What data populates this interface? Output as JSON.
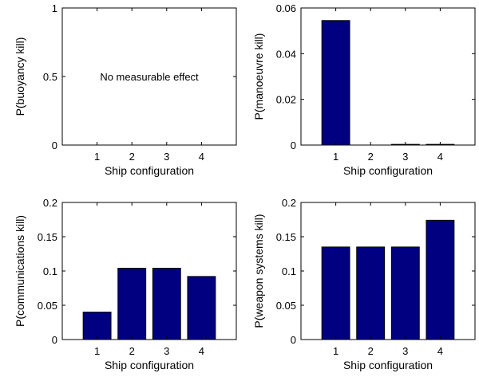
{
  "chart_data": [
    {
      "type": "bar",
      "categories": [
        "1",
        "2",
        "3",
        "4"
      ],
      "values": [
        0,
        0,
        0,
        0
      ],
      "xlabel": "Ship configuration",
      "ylabel": "P(buoyancy kill)",
      "ylim": [
        0,
        1
      ],
      "yticks": [
        "0",
        "0.5",
        "1"
      ],
      "annotation": "No measurable effect",
      "bar_color": "#000080"
    },
    {
      "type": "bar",
      "categories": [
        "1",
        "2",
        "3",
        "4"
      ],
      "values": [
        0.0545,
        0.0,
        0.0003,
        0.0003
      ],
      "xlabel": "Ship configuration",
      "ylabel": "P(manoeuvre kill)",
      "ylim": [
        0,
        0.06
      ],
      "yticks": [
        "0",
        "0.02",
        "0.04",
        "0.06"
      ],
      "bar_color": "#000080"
    },
    {
      "type": "bar",
      "categories": [
        "1",
        "2",
        "3",
        "4"
      ],
      "values": [
        0.04,
        0.104,
        0.104,
        0.092
      ],
      "xlabel": "Ship configuration",
      "ylabel": "P(communications kill)",
      "ylim": [
        0,
        0.2
      ],
      "yticks": [
        "0",
        "0.05",
        "0.1",
        "0.15",
        "0.2"
      ],
      "bar_color": "#000080"
    },
    {
      "type": "bar",
      "categories": [
        "1",
        "2",
        "3",
        "4"
      ],
      "values": [
        0.135,
        0.135,
        0.135,
        0.174
      ],
      "xlabel": "Ship configuration",
      "ylabel": "P(weapon systems kill)",
      "ylim": [
        0,
        0.2
      ],
      "yticks": [
        "0",
        "0.05",
        "0.1",
        "0.15",
        "0.2"
      ],
      "bar_color": "#000080"
    }
  ]
}
